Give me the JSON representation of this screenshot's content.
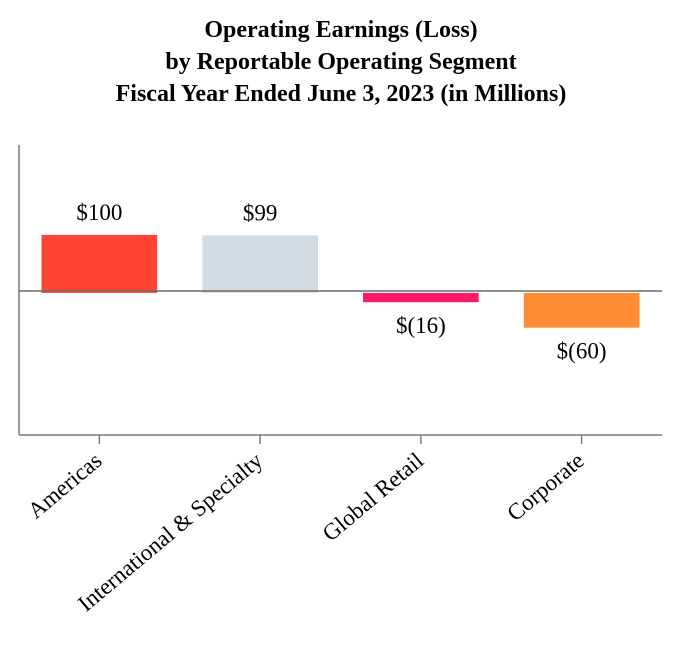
{
  "chart_data": {
    "type": "bar",
    "title": [
      "Operating Earnings (Loss)",
      "by Reportable Operating Segment",
      "Fiscal Year Ended June 3, 2023 (in Millions)"
    ],
    "categories": [
      "Americas",
      "International & Specialty",
      "Global Retail",
      "Corporate"
    ],
    "values": [
      100,
      99,
      -16,
      -60
    ],
    "value_labels": [
      "$100",
      "$99",
      "$(16)",
      "$(60)"
    ],
    "colors": [
      "#ff4433",
      "#d2dbe1",
      "#ff1a66",
      "#ff8c33"
    ],
    "ylim": [
      -245,
      255
    ],
    "xlabel": "",
    "ylabel": "",
    "grid": false,
    "legend": "none"
  }
}
